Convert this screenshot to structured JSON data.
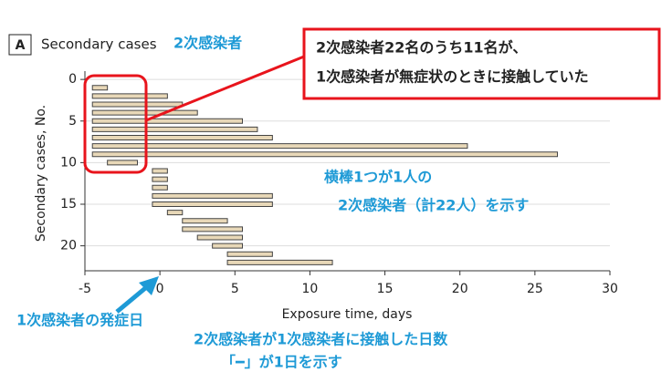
{
  "chart_data": {
    "type": "range-bar",
    "panel": "A",
    "title": "Secondary cases",
    "xlabel": "Exposure time, days",
    "ylabel": "Secondary cases, No.",
    "y": [
      1,
      2,
      3,
      4,
      5,
      6,
      7,
      8,
      9,
      10,
      11,
      12,
      13,
      14,
      15,
      16,
      17,
      18,
      19,
      20,
      21,
      22
    ],
    "starts": [
      -4.5,
      -4.5,
      -4.5,
      -4.5,
      -4.5,
      -4.5,
      -4.5,
      -4.5,
      -4.5,
      -3.5,
      -0.5,
      -0.5,
      -0.5,
      -0.5,
      -0.5,
      0.5,
      1.5,
      1.5,
      2.5,
      3.5,
      4.5,
      4.5
    ],
    "ends": [
      -3.5,
      0.5,
      1.5,
      2.5,
      5.5,
      6.5,
      7.5,
      20.5,
      26.5,
      -1.5,
      0.5,
      0.5,
      0.5,
      7.5,
      7.5,
      1.5,
      4.5,
      5.5,
      5.5,
      5.5,
      7.5,
      11.5
    ],
    "color": "#e8d8b8",
    "xlim": [
      -5,
      30
    ],
    "xticks": [
      -5,
      0,
      5,
      10,
      15,
      20,
      25,
      30
    ],
    "ylim": [
      -1,
      23
    ],
    "yticks": [
      0,
      5,
      10,
      15,
      20
    ],
    "grid": true,
    "annotations": [
      "2次感染者",
      "2次感染者22名のうち11名が、",
      "1次感染者が無症状のときに接触していた",
      "横棒1つが1人の",
      "2次感染者（計22人）を示す",
      "1次感染者の発症日",
      "2次感染者が1次感染者に接触した日数",
      "「━」が1日を示す"
    ]
  }
}
